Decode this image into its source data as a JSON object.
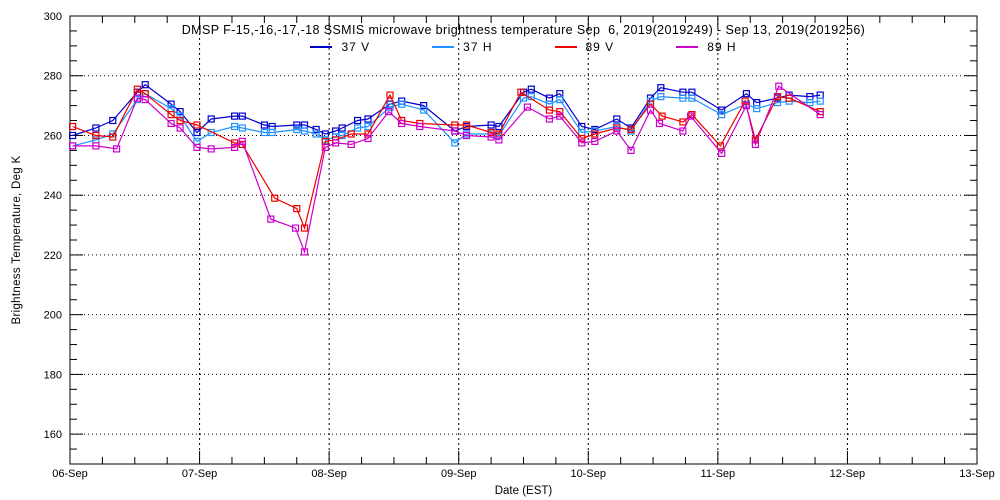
{
  "chart_data": {
    "type": "line",
    "title": "DMSP F-15,-16,-17,-18 SSMIS microwave brightness temperature Sep  6, 2019(2019249) - Sep 13, 2019(2019256)",
    "xlabel": "Date (EST)",
    "ylabel": "Brightness Temperature, Deg K",
    "background_color": "#ffffff",
    "axis_color": "#000000",
    "xlim_days": [
      0,
      7
    ],
    "ylim": [
      150,
      300
    ],
    "x_tick_labels": [
      "06-Sep",
      "07-Sep",
      "08-Sep",
      "09-Sep",
      "10-Sep",
      "11-Sep",
      "12-Sep",
      "13-Sep"
    ],
    "x_minor_tick_step_days": 0.25,
    "y_tick_values": [
      160,
      180,
      200,
      220,
      240,
      260,
      280,
      300
    ],
    "y_minor_tick_step": 5,
    "grid": {
      "horizontal": "dotted lines at 160-280 K majors",
      "vertical": "dashed lines at interior day boundaries"
    },
    "legend_position": "top-inside",
    "marker": "open-square",
    "x_unit": "days since 06-Sep 00:00 EST",
    "series": [
      {
        "name": "37 V",
        "color": "#0000cd",
        "points": [
          [
            0.02,
            260
          ],
          [
            0.2,
            262.5
          ],
          [
            0.33,
            265
          ],
          [
            0.52,
            274.5
          ],
          [
            0.58,
            277
          ],
          [
            0.78,
            270.5
          ],
          [
            0.85,
            268
          ],
          [
            0.98,
            261
          ],
          [
            1.09,
            265.5
          ],
          [
            1.27,
            266.5
          ],
          [
            1.33,
            266.5
          ],
          [
            1.5,
            263.5
          ],
          [
            1.56,
            263
          ],
          [
            1.75,
            263.5
          ],
          [
            1.81,
            263.5
          ],
          [
            1.9,
            262
          ],
          [
            1.97,
            260.5
          ],
          [
            2.05,
            261.5
          ],
          [
            2.1,
            262.5
          ],
          [
            2.22,
            265
          ],
          [
            2.3,
            265.5
          ],
          [
            2.47,
            270.5
          ],
          [
            2.56,
            271.5
          ],
          [
            2.73,
            270
          ],
          [
            2.97,
            261.5
          ],
          [
            3.06,
            263
          ],
          [
            3.25,
            263.5
          ],
          [
            3.31,
            263
          ],
          [
            3.5,
            274.5
          ],
          [
            3.56,
            275.5
          ],
          [
            3.7,
            272.5
          ],
          [
            3.78,
            274
          ],
          [
            3.95,
            263
          ],
          [
            4.05,
            262
          ],
          [
            4.22,
            265.5
          ],
          [
            4.33,
            262.5
          ],
          [
            4.48,
            272.5
          ],
          [
            4.56,
            276
          ],
          [
            4.73,
            274.5
          ],
          [
            4.8,
            274.5
          ],
          [
            5.03,
            268.5
          ],
          [
            5.22,
            274
          ],
          [
            5.3,
            271
          ],
          [
            5.46,
            272.5
          ],
          [
            5.55,
            273.5
          ],
          [
            5.71,
            273
          ],
          [
            5.79,
            273.5
          ]
        ]
      },
      {
        "name": "37 H",
        "color": "#1e90ff",
        "points": [
          [
            0.02,
            256.5
          ],
          [
            0.2,
            258.5
          ],
          [
            0.33,
            260.5
          ],
          [
            0.52,
            272
          ],
          [
            0.58,
            274
          ],
          [
            0.78,
            269
          ],
          [
            0.85,
            266.5
          ],
          [
            0.98,
            258
          ],
          [
            1.09,
            261
          ],
          [
            1.27,
            263
          ],
          [
            1.33,
            262.5
          ],
          [
            1.5,
            261
          ],
          [
            1.56,
            261
          ],
          [
            1.75,
            262
          ],
          [
            1.81,
            261.5
          ],
          [
            1.9,
            260.5
          ],
          [
            1.97,
            258.5
          ],
          [
            2.05,
            259.5
          ],
          [
            2.1,
            260
          ],
          [
            2.22,
            262.5
          ],
          [
            2.3,
            263
          ],
          [
            2.47,
            269.5
          ],
          [
            2.56,
            270.5
          ],
          [
            2.73,
            268.5
          ],
          [
            2.97,
            257.5
          ],
          [
            3.06,
            260.5
          ],
          [
            3.25,
            260.5
          ],
          [
            3.31,
            260
          ],
          [
            3.5,
            272.5
          ],
          [
            3.56,
            273
          ],
          [
            3.7,
            270.5
          ],
          [
            3.78,
            272
          ],
          [
            3.95,
            261
          ],
          [
            4.05,
            261.5
          ],
          [
            4.22,
            263
          ],
          [
            4.33,
            261.5
          ],
          [
            4.48,
            271.5
          ],
          [
            4.56,
            273
          ],
          [
            4.73,
            272.5
          ],
          [
            4.8,
            272.5
          ],
          [
            5.03,
            267
          ],
          [
            5.22,
            270.5
          ],
          [
            5.3,
            269
          ],
          [
            5.46,
            271
          ],
          [
            5.55,
            271.5
          ],
          [
            5.71,
            271
          ],
          [
            5.79,
            271.5
          ]
        ]
      },
      {
        "name": "89 V",
        "color": "#ee0000",
        "points": [
          [
            0.02,
            263
          ],
          [
            0.2,
            260
          ],
          [
            0.33,
            259.5
          ],
          [
            0.52,
            275.5
          ],
          [
            0.58,
            274
          ],
          [
            0.78,
            267
          ],
          [
            0.85,
            265
          ],
          [
            0.98,
            263.5
          ],
          [
            1.27,
            257.5
          ],
          [
            1.33,
            257
          ],
          [
            1.58,
            239
          ],
          [
            1.75,
            235.5
          ],
          [
            1.81,
            229
          ],
          [
            1.97,
            258
          ],
          [
            2.05,
            258.5
          ],
          [
            2.17,
            260.5
          ],
          [
            2.3,
            260.5
          ],
          [
            2.47,
            273.5
          ],
          [
            2.56,
            265
          ],
          [
            2.7,
            264
          ],
          [
            2.97,
            263.5
          ],
          [
            3.06,
            263.5
          ],
          [
            3.25,
            261
          ],
          [
            3.31,
            260.5
          ],
          [
            3.48,
            274.5
          ],
          [
            3.7,
            268.5
          ],
          [
            3.78,
            268
          ],
          [
            3.95,
            259
          ],
          [
            4.05,
            260.5
          ],
          [
            4.22,
            262.5
          ],
          [
            4.33,
            262
          ],
          [
            4.48,
            270.5
          ],
          [
            4.57,
            266.5
          ],
          [
            4.73,
            264.5
          ],
          [
            4.8,
            267
          ],
          [
            5.02,
            256.5
          ],
          [
            5.21,
            271.5
          ],
          [
            5.29,
            258.5
          ],
          [
            5.46,
            273
          ],
          [
            5.55,
            272.5
          ],
          [
            5.79,
            268
          ]
        ]
      },
      {
        "name": "89 H",
        "color": "#cc00cc",
        "points": [
          [
            0.02,
            256.5
          ],
          [
            0.2,
            256.5
          ],
          [
            0.36,
            255.5
          ],
          [
            0.52,
            272.5
          ],
          [
            0.58,
            272
          ],
          [
            0.78,
            264
          ],
          [
            0.85,
            262.5
          ],
          [
            0.98,
            256
          ],
          [
            1.09,
            255.5
          ],
          [
            1.27,
            256
          ],
          [
            1.33,
            258
          ],
          [
            1.55,
            232
          ],
          [
            1.74,
            229
          ],
          [
            1.81,
            221
          ],
          [
            1.97,
            256
          ],
          [
            2.05,
            257.5
          ],
          [
            2.17,
            257
          ],
          [
            2.3,
            259
          ],
          [
            2.46,
            268
          ],
          [
            2.56,
            264
          ],
          [
            2.7,
            263
          ],
          [
            2.97,
            261.5
          ],
          [
            3.06,
            260
          ],
          [
            3.25,
            259.5
          ],
          [
            3.31,
            258.5
          ],
          [
            3.53,
            269.5
          ],
          [
            3.7,
            265.5
          ],
          [
            3.78,
            266.5
          ],
          [
            3.95,
            257.5
          ],
          [
            4.05,
            258
          ],
          [
            4.22,
            261.5
          ],
          [
            4.33,
            255
          ],
          [
            4.48,
            268.5
          ],
          [
            4.55,
            264
          ],
          [
            4.73,
            261.5
          ],
          [
            4.79,
            266.5
          ],
          [
            5.03,
            254
          ],
          [
            5.22,
            270
          ],
          [
            5.29,
            257
          ],
          [
            5.47,
            276.5
          ],
          [
            5.79,
            267
          ]
        ]
      }
    ]
  }
}
